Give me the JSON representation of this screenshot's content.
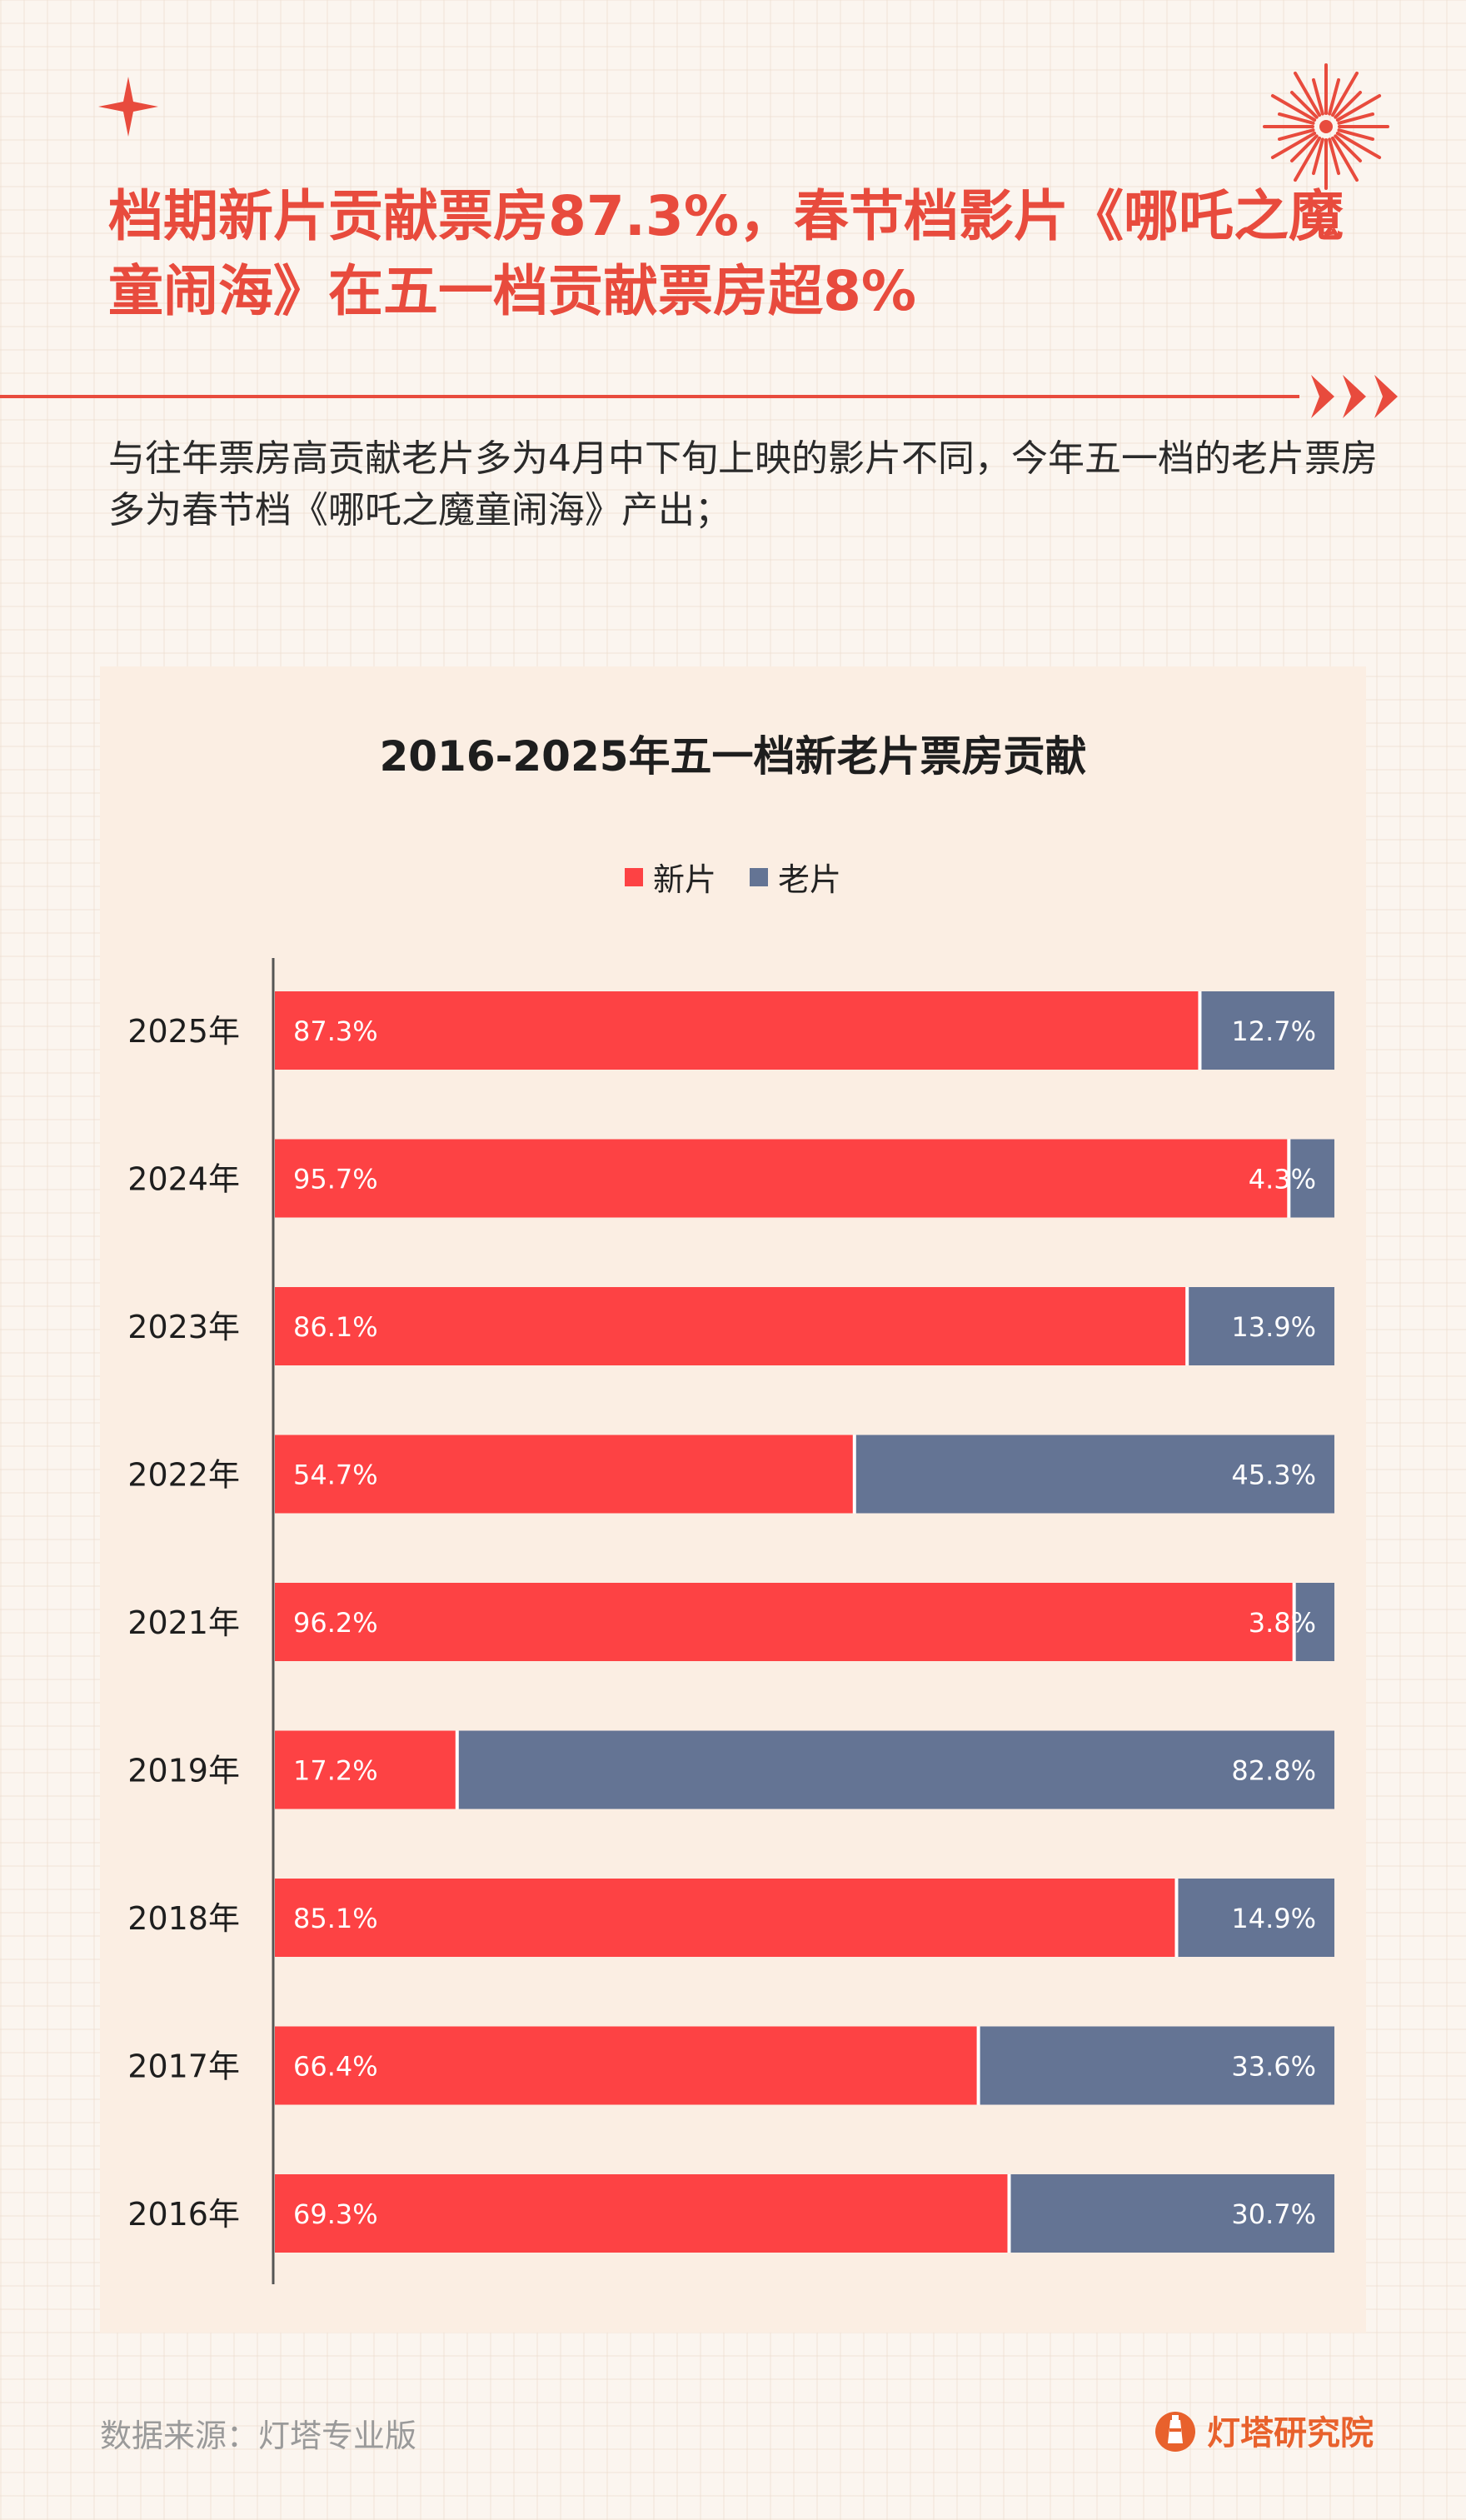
{
  "headline": "档期新片贡献票房87.3%，春节档影片《哪吒之魔童闹海》在五一档贡献票房超8%",
  "subtitle": "与往年票房高贡献老片多为4月中下旬上映的影片不同，今年五一档的老片票房多为春节档《哪吒之魔童闹海》产出；",
  "footer": {
    "source": "数据来源：灯塔专业版",
    "brand": "灯塔研究院"
  },
  "icons": {
    "sparkle": "sparkle-icon",
    "firework": "firework-icon",
    "chevrons": "triple-chevron-icon",
    "brand_logo": "lighthouse-logo-icon"
  },
  "colors": {
    "accent": "#e84b3d",
    "new_films": "#fd4244",
    "old_films": "#647494",
    "brand": "#e8612c"
  },
  "chart_data": {
    "type": "bar",
    "orientation": "horizontal",
    "stacked": "percent",
    "title": "2016-2025年五一档新老片票房贡献",
    "legend_position": "top-center",
    "grid": false,
    "categories": [
      "2025年",
      "2024年",
      "2023年",
      "2022年",
      "2021年",
      "2019年",
      "2018年",
      "2017年",
      "2016年"
    ],
    "series": [
      {
        "name": "新片",
        "color": "#fd4244",
        "values": [
          87.3,
          95.7,
          86.1,
          54.7,
          96.2,
          17.2,
          85.1,
          66.4,
          69.3
        ]
      },
      {
        "name": "老片",
        "color": "#647494",
        "values": [
          12.7,
          4.3,
          13.9,
          45.3,
          3.8,
          82.8,
          14.9,
          33.6,
          30.7
        ]
      }
    ],
    "value_suffix": "%",
    "xlim": [
      0,
      100
    ]
  }
}
